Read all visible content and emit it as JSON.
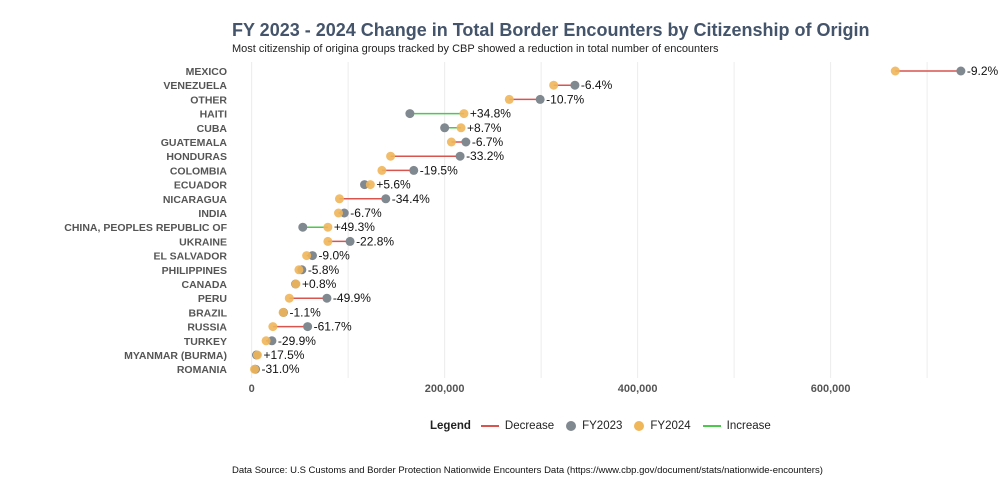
{
  "title": "FY 2023 - 2024 Change in Total Border Encounters by Citizenship of Origin",
  "subtitle": "Most citizenship of origina groups tracked by CBP showed a reduction in total number of encounters",
  "source": "Data Source: U.S Customs and Border Protection Nationwide Encounters Data (https://www.cbp.gov/document/stats/nationwide-encounters)",
  "legend": {
    "title": "Legend",
    "items": [
      {
        "label": "Decrease",
        "kind": "line",
        "color": "#d9534f"
      },
      {
        "label": "FY2023",
        "kind": "dot",
        "color": "#808890"
      },
      {
        "label": "FY2024",
        "kind": "dot",
        "color": "#f0b65a"
      },
      {
        "label": "Increase",
        "kind": "line",
        "color": "#4cc94c"
      }
    ]
  },
  "colors": {
    "fy2023": "#808890",
    "fy2024": "#f0b65a",
    "decrease": "#d9534f",
    "increase": "#4cc94c",
    "grid": "#ececec",
    "axis_text": "#555555"
  },
  "chart_data": {
    "type": "dumbbell",
    "title": "FY 2023 - 2024 Change in Total Border Encounters by Citizenship of Origin",
    "xlim": [
      -10000,
      760000
    ],
    "x_ticks": [
      0,
      200000,
      400000,
      600000
    ],
    "x_tick_labels": [
      "0",
      "200,000",
      "400,000",
      "600,000"
    ],
    "series_names": [
      "FY2023",
      "FY2024"
    ],
    "rows": [
      {
        "label": "MEXICO",
        "fy2023": 735000,
        "fy2024": 667000,
        "change": "-9.2%"
      },
      {
        "label": "VENEZUELA",
        "fy2023": 335000,
        "fy2024": 313000,
        "change": "-6.4%"
      },
      {
        "label": "OTHER",
        "fy2023": 299000,
        "fy2024": 267000,
        "change": "-10.7%"
      },
      {
        "label": "HAITI",
        "fy2023": 164000,
        "fy2024": 220000,
        "change": "+34.8%"
      },
      {
        "label": "CUBA",
        "fy2023": 200000,
        "fy2024": 217000,
        "change": "+8.7%"
      },
      {
        "label": "GUATEMALA",
        "fy2023": 222000,
        "fy2024": 207000,
        "change": "-6.7%"
      },
      {
        "label": "HONDURAS",
        "fy2023": 216000,
        "fy2024": 144000,
        "change": "-33.2%"
      },
      {
        "label": "COLOMBIA",
        "fy2023": 168000,
        "fy2024": 135000,
        "change": "-19.5%"
      },
      {
        "label": "ECUADOR",
        "fy2023": 117000,
        "fy2024": 123000,
        "change": "+5.6%"
      },
      {
        "label": "NICARAGUA",
        "fy2023": 139000,
        "fy2024": 91000,
        "change": "-34.4%"
      },
      {
        "label": "INDIA",
        "fy2023": 96000,
        "fy2024": 90000,
        "change": "-6.7%"
      },
      {
        "label": "CHINA, PEOPLES REPUBLIC OF",
        "fy2023": 53000,
        "fy2024": 79000,
        "change": "+49.3%"
      },
      {
        "label": "UKRAINE",
        "fy2023": 102000,
        "fy2024": 79000,
        "change": "-22.8%"
      },
      {
        "label": "EL SALVADOR",
        "fy2023": 63000,
        "fy2024": 57000,
        "change": "-9.0%"
      },
      {
        "label": "PHILIPPINES",
        "fy2023": 52000,
        "fy2024": 49000,
        "change": "-5.8%"
      },
      {
        "label": "CANADA",
        "fy2023": 45500,
        "fy2024": 45900,
        "change": "+0.8%"
      },
      {
        "label": "PERU",
        "fy2023": 78000,
        "fy2024": 39000,
        "change": "-49.9%"
      },
      {
        "label": "BRAZIL",
        "fy2023": 33000,
        "fy2024": 32600,
        "change": "-1.1%"
      },
      {
        "label": "RUSSIA",
        "fy2023": 58000,
        "fy2024": 22000,
        "change": "-61.7%"
      },
      {
        "label": "TURKEY",
        "fy2023": 21000,
        "fy2024": 15000,
        "change": "-29.9%"
      },
      {
        "label": "MYANMAR (BURMA)",
        "fy2023": 5000,
        "fy2024": 6000,
        "change": "+17.5%"
      },
      {
        "label": "ROMANIA",
        "fy2023": 4000,
        "fy2024": 3000,
        "change": "-31.0%"
      }
    ]
  }
}
